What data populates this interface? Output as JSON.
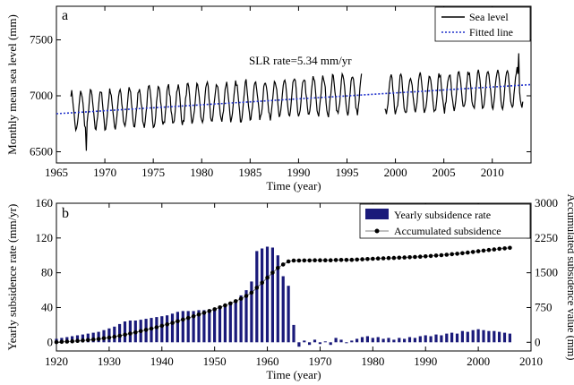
{
  "chart_data": [
    {
      "panel_label": "a",
      "type": "line",
      "xlabel": "Time (year)",
      "ylabel": "Monthly mean sea level (mm)",
      "xlim": [
        1965,
        2014
      ],
      "ylim": [
        6400,
        7800
      ],
      "xticks": [
        1965,
        1970,
        1975,
        1980,
        1985,
        1990,
        1995,
        2000,
        2005,
        2010
      ],
      "yticks": [
        6500,
        7000,
        7500
      ],
      "annotation": "SLR rate=5.34 mm/yr",
      "legend": {
        "placement": "top-right",
        "entries": [
          "Sea level",
          "Fitted line"
        ]
      },
      "series": [
        {
          "name": "Sea level",
          "color": "#000000",
          "style": "solid",
          "segments": [
            {
              "start": 1966.5,
              "end": 1996.5,
              "mean_start": 6860,
              "trend_per_year": 5.34,
              "amplitude": 170
            },
            {
              "start": 1998.9,
              "end": 2013.2,
              "mean_start": 7000,
              "trend_per_year": 5.34,
              "amplitude": 165
            }
          ],
          "min_point": [
            1968.1,
            6510
          ],
          "max_point": [
            2012.7,
            7380
          ]
        },
        {
          "name": "Fitted line",
          "color": "#2233cc",
          "style": "dotted",
          "x": [
            1965,
            2014
          ],
          "y": [
            6840,
            7100
          ]
        }
      ]
    },
    {
      "panel_label": "b",
      "type": "bar",
      "xlabel": "Time (year)",
      "ylabel": "Yearly subsidence rate (mm/yr)",
      "ylabel_right": "Accumulated subsidence value (mm)",
      "xlim": [
        1920,
        2010
      ],
      "ylim": [
        -10,
        160
      ],
      "ylim_right": [
        -187.5,
        3000
      ],
      "xticks": [
        1920,
        1930,
        1940,
        1950,
        1960,
        1970,
        1980,
        1990,
        2000,
        2010
      ],
      "yticks": [
        0,
        40,
        80,
        120,
        160
      ],
      "yticks_right": [
        0,
        750,
        1500,
        2250,
        3000
      ],
      "legend": {
        "placement": "top-right",
        "entries": [
          "Yearly subsidence rate",
          "Accumulated subsidence"
        ]
      },
      "bar_color": "#1a1a7a",
      "years": [
        1920,
        1921,
        1922,
        1923,
        1924,
        1925,
        1926,
        1927,
        1928,
        1929,
        1930,
        1931,
        1932,
        1933,
        1934,
        1935,
        1936,
        1937,
        1938,
        1939,
        1940,
        1941,
        1942,
        1943,
        1944,
        1945,
        1946,
        1947,
        1948,
        1949,
        1950,
        1951,
        1952,
        1953,
        1954,
        1955,
        1956,
        1957,
        1958,
        1959,
        1960,
        1961,
        1962,
        1963,
        1964,
        1965,
        1966,
        1967,
        1968,
        1969,
        1970,
        1971,
        1972,
        1973,
        1974,
        1975,
        1976,
        1977,
        1978,
        1979,
        1980,
        1981,
        1982,
        1983,
        1984,
        1985,
        1986,
        1987,
        1988,
        1989,
        1990,
        1991,
        1992,
        1993,
        1994,
        1995,
        1996,
        1997,
        1998,
        1999,
        2000,
        2001,
        2002,
        2003,
        2004,
        2005,
        2006
      ],
      "yearly_rate": [
        4,
        5,
        6,
        7,
        8,
        9,
        10,
        11,
        12,
        14,
        16,
        18,
        21,
        24,
        25,
        25,
        26,
        27,
        28,
        29,
        30,
        31,
        33,
        35,
        36,
        36,
        36,
        37,
        37,
        38,
        39,
        40,
        42,
        44,
        48,
        54,
        60,
        70,
        105,
        108,
        110,
        109,
        100,
        76,
        65,
        20,
        -5,
        2,
        -3,
        3,
        -2,
        1,
        -3,
        5,
        3,
        -1,
        2,
        4,
        6,
        7,
        5,
        6,
        4,
        5,
        3,
        5,
        4,
        6,
        5,
        7,
        8,
        7,
        9,
        8,
        10,
        11,
        10,
        13,
        12,
        14,
        15,
        14,
        13,
        13,
        12,
        11,
        10
      ],
      "accumulated": [
        4,
        9,
        15,
        22,
        30,
        39,
        49,
        60,
        72,
        86,
        102,
        120,
        141,
        165,
        190,
        215,
        241,
        268,
        296,
        325,
        355,
        386,
        419,
        454,
        490,
        526,
        562,
        599,
        636,
        674,
        713,
        753,
        795,
        839,
        887,
        941,
        1001,
        1071,
        1176,
        1284,
        1394,
        1503,
        1603,
        1679,
        1744,
        1764,
        1764,
        1766,
        1766,
        1769,
        1769,
        1770,
        1770,
        1775,
        1778,
        1778,
        1780,
        1784,
        1790,
        1797,
        1802,
        1808,
        1812,
        1817,
        1820,
        1825,
        1829,
        1835,
        1840,
        1847,
        1855,
        1862,
        1871,
        1879,
        1889,
        1900,
        1910,
        1923,
        1935,
        1949,
        1964,
        1978,
        1991,
        2004,
        2016,
        2027,
        2037
      ]
    }
  ]
}
